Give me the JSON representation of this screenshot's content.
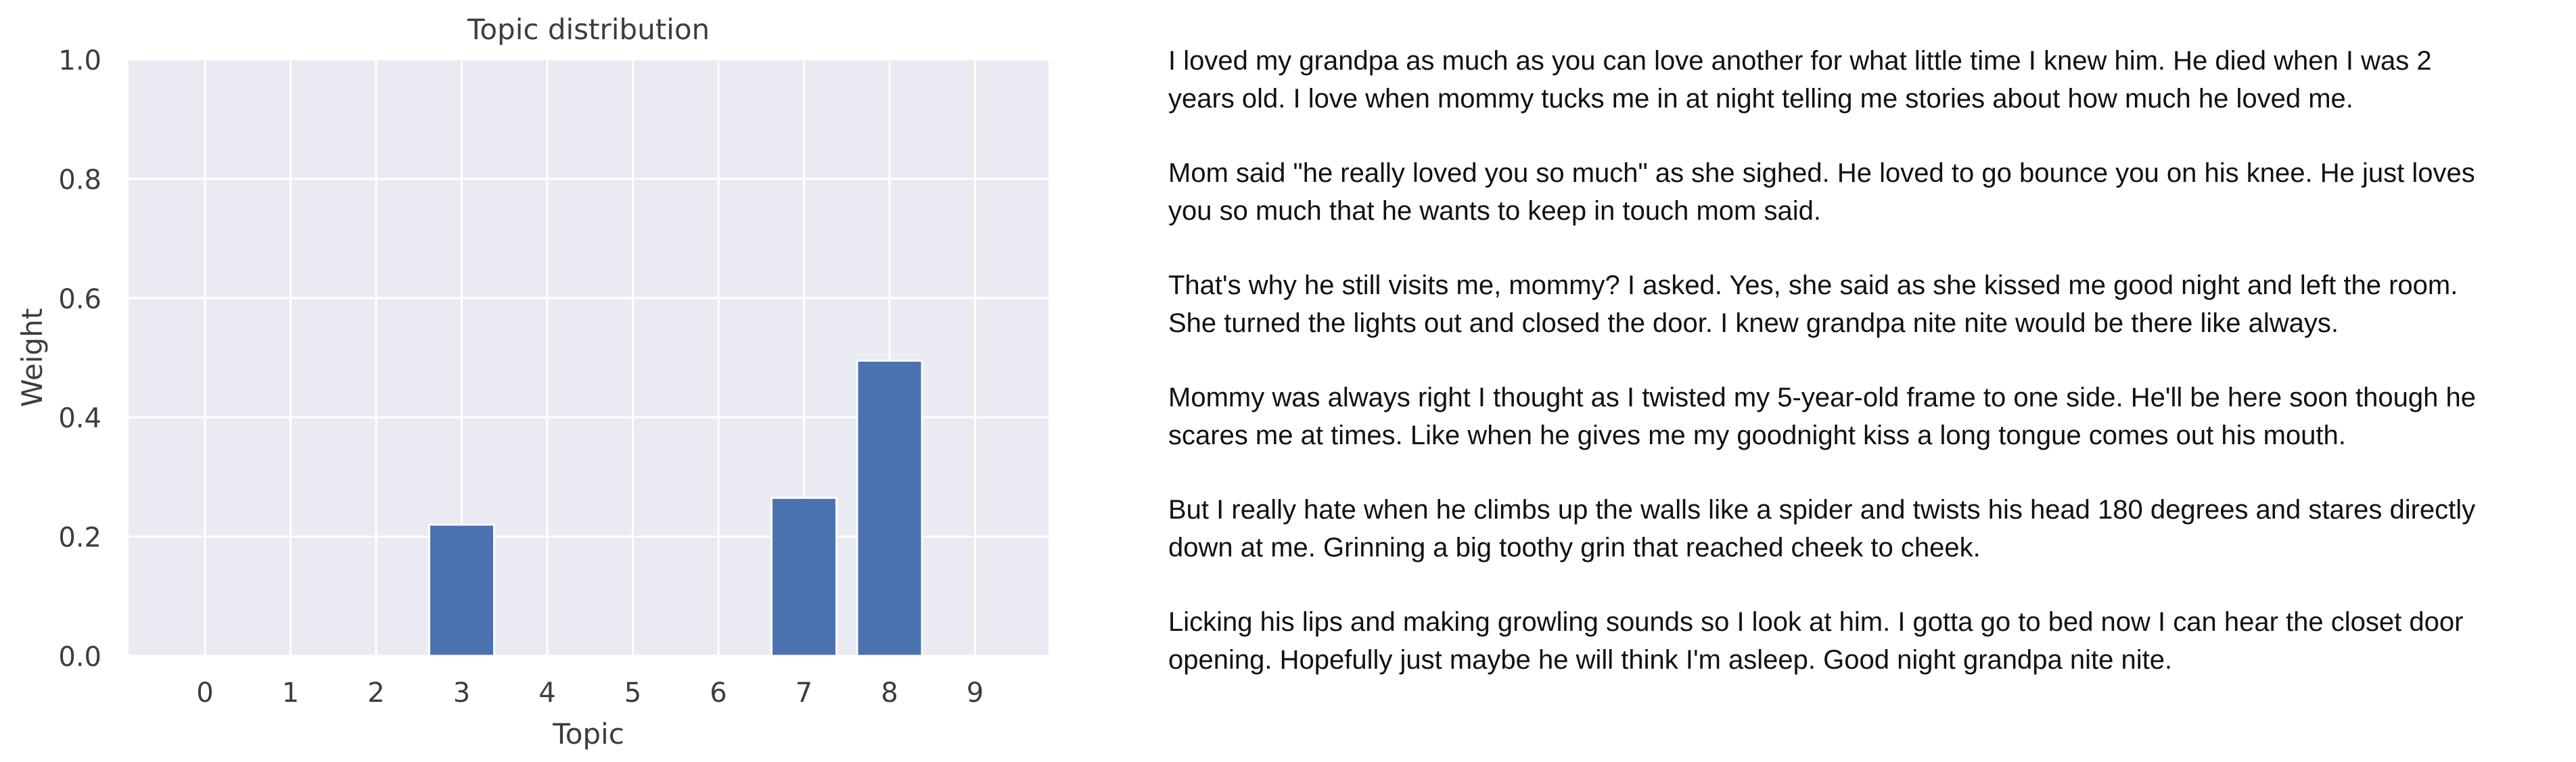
{
  "chart_data": {
    "type": "bar",
    "title": "Topic distribution",
    "xlabel": "Topic",
    "ylabel": "Weight",
    "categories": [
      "0",
      "1",
      "2",
      "3",
      "4",
      "5",
      "6",
      "7",
      "8",
      "9"
    ],
    "values": [
      0,
      0,
      0,
      0.22,
      0,
      0,
      0,
      0.265,
      0.495,
      0
    ],
    "ylim": [
      0,
      1.0
    ],
    "yticks": [
      "0.0",
      "0.2",
      "0.4",
      "0.6",
      "0.8",
      "1.0"
    ],
    "grid": true,
    "colors": {
      "bar": "#4c72b0",
      "plot_background": "#eaeaf2",
      "grid": "#ffffff"
    }
  },
  "story": {
    "paragraphs": [
      "I loved my grandpa as much as you can love another for what little time I knew him. He died when I was 2\nyears old. I love when mommy tucks me in at night telling me stories about how much he loved me.",
      "Mom said \"he really loved you so much\" as she sighed. He loved to go bounce you on his knee. He just loves\nyou so much that he wants to keep in touch mom said.",
      "That's why he still visits me, mommy? I asked. Yes, she said as she kissed me good night and left the room.\nShe turned the lights out and closed the door. I knew grandpa nite nite would be there like always.",
      "Mommy was always right I thought as I twisted my 5-year-old frame to one side. He'll be here soon though he\nscares me at times. Like when he gives me my goodnight kiss a long tongue comes out his mouth.",
      "But I really hate when he climbs up the walls like a spider and twists his head 180 degrees and stares directly\ndown at me. Grinning a big toothy grin that reached cheek to cheek.",
      "Licking his lips and making growling sounds so I look at him. I gotta go to bed now I can hear the closet door\nopening. Hopefully just maybe he will think I'm asleep. Good night grandpa nite nite."
    ]
  }
}
